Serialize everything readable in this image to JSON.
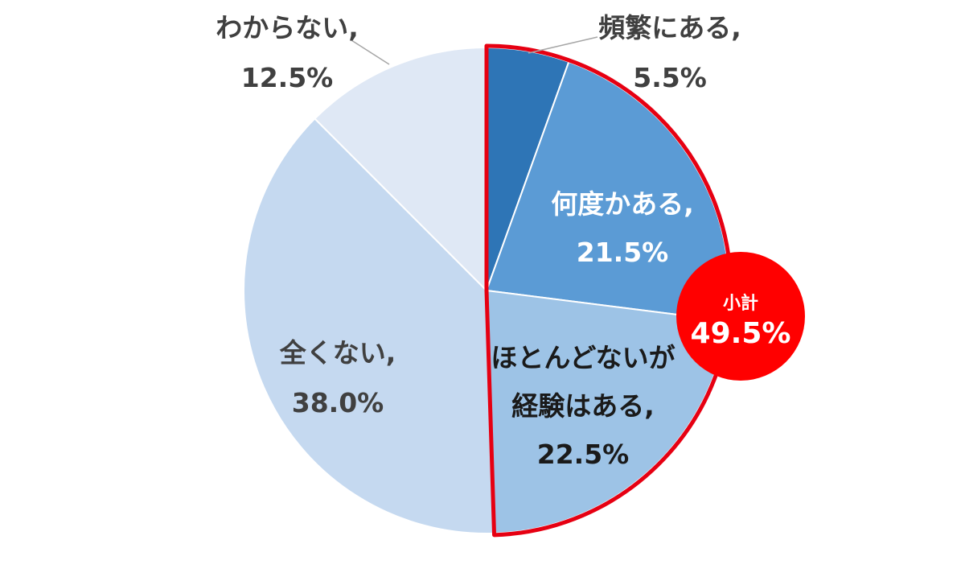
{
  "chart_data": {
    "type": "pie",
    "start_angle_deg": 0,
    "direction": "clockwise",
    "slices": [
      {
        "label": "頻繁にある,",
        "value": 5.5,
        "value_text": "5.5%",
        "color": "#2e75b6"
      },
      {
        "label": "何度かある,",
        "value": 21.5,
        "value_text": "21.5%",
        "color": "#5b9bd5"
      },
      {
        "label": "ほとんどないが",
        "label2": "経験はある,",
        "value": 22.5,
        "value_text": "22.5%",
        "color": "#9dc3e6"
      },
      {
        "label": "全くない,",
        "value": 38.0,
        "value_text": "38.0%",
        "color": "#c5d9f0"
      },
      {
        "label": "わからない,",
        "value": 12.5,
        "value_text": "12.5%",
        "color": "#dfe8f5"
      }
    ],
    "highlight": {
      "slices": [
        0,
        1,
        2
      ],
      "outline_color": "#e60012",
      "badge_label": "小計",
      "badge_value": "49.5%",
      "badge_color": "#ff0000"
    }
  }
}
